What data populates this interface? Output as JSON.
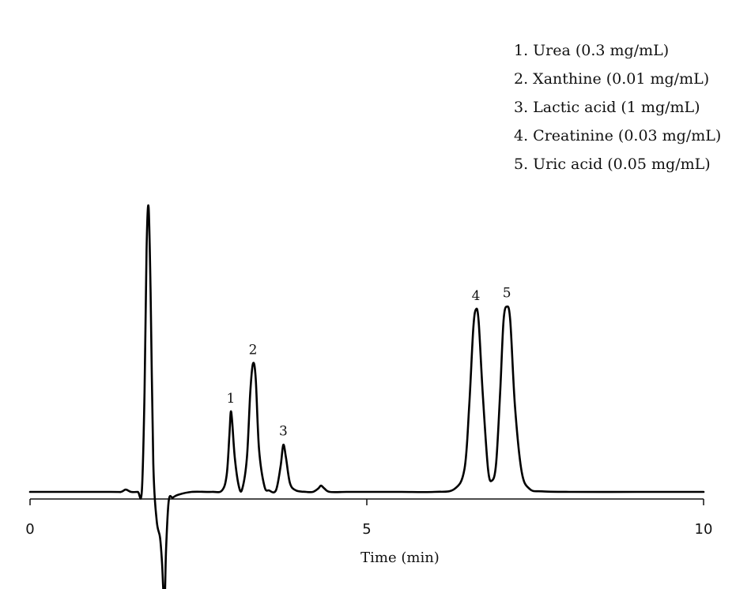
{
  "chart_data": {
    "type": "line",
    "title": "",
    "xlabel": "Time (min)",
    "ylabel": "",
    "xlim": [
      0,
      10
    ],
    "ylim": [
      -0.42,
      1.0
    ],
    "xticks": [
      0,
      5,
      10
    ],
    "xtick_labels": [
      "0",
      "5",
      "10"
    ],
    "grid": false,
    "legend_placement": "top-right",
    "legend": [
      "1. Urea (0.3 mg/mL)",
      "2. Xanthine (0.01 mg/mL)",
      "3. Lactic acid (1 mg/mL)",
      "4. Creatinine (0.03 mg/mL)",
      "5. Uric acid (0.05 mg/mL)"
    ],
    "peaks": [
      {
        "label": "1",
        "x": 2.98,
        "height": 0.28
      },
      {
        "label": "2",
        "x": 3.31,
        "height": 0.45
      },
      {
        "label": "3",
        "x": 3.76,
        "height": 0.165
      },
      {
        "label": "4",
        "x": 6.62,
        "height": 0.64
      },
      {
        "label": "5",
        "x": 7.08,
        "height": 0.65
      }
    ],
    "series": [
      {
        "x": [
          0,
          1.2,
          1.35,
          1.42,
          1.5,
          1.6,
          1.66,
          1.7,
          1.73,
          1.76,
          1.79,
          1.83,
          1.88,
          1.93,
          1.96,
          1.98,
          2.0,
          2.02,
          2.06,
          2.12,
          2.2,
          2.4,
          2.7,
          2.85,
          2.92,
          2.96,
          2.98,
          3.0,
          3.04,
          3.1,
          3.15,
          3.22,
          3.27,
          3.31,
          3.35,
          3.4,
          3.48,
          3.55,
          3.65,
          3.72,
          3.76,
          3.8,
          3.86,
          3.95,
          4.1,
          4.2,
          4.28,
          4.32,
          4.37,
          4.45,
          4.7,
          5.0,
          5.5,
          6.0,
          6.3,
          6.45,
          6.52,
          6.58,
          6.62,
          6.66,
          6.72,
          6.8,
          6.86,
          6.92,
          6.98,
          7.03,
          7.08,
          7.13,
          7.2,
          7.3,
          7.42,
          7.6,
          8.0,
          9.0,
          10.0
        ],
        "y": [
          0.0,
          0.0,
          0.0,
          0.008,
          0.0,
          0.0,
          0.003,
          0.35,
          0.85,
          1.0,
          0.7,
          0.1,
          -0.1,
          -0.16,
          -0.25,
          -0.35,
          -0.38,
          -0.2,
          -0.03,
          -0.02,
          -0.01,
          0.0,
          0.0,
          0.005,
          0.06,
          0.2,
          0.28,
          0.25,
          0.12,
          0.02,
          0.01,
          0.12,
          0.35,
          0.45,
          0.4,
          0.15,
          0.02,
          0.005,
          0.005,
          0.09,
          0.165,
          0.12,
          0.03,
          0.005,
          0.0,
          0.0,
          0.012,
          0.022,
          0.012,
          0.0,
          0.0,
          0.0,
          0.0,
          0.0,
          0.01,
          0.08,
          0.3,
          0.57,
          0.64,
          0.6,
          0.35,
          0.08,
          0.04,
          0.1,
          0.35,
          0.6,
          0.65,
          0.6,
          0.3,
          0.07,
          0.01,
          0.002,
          0.0,
          0.0,
          0.0
        ]
      }
    ]
  }
}
